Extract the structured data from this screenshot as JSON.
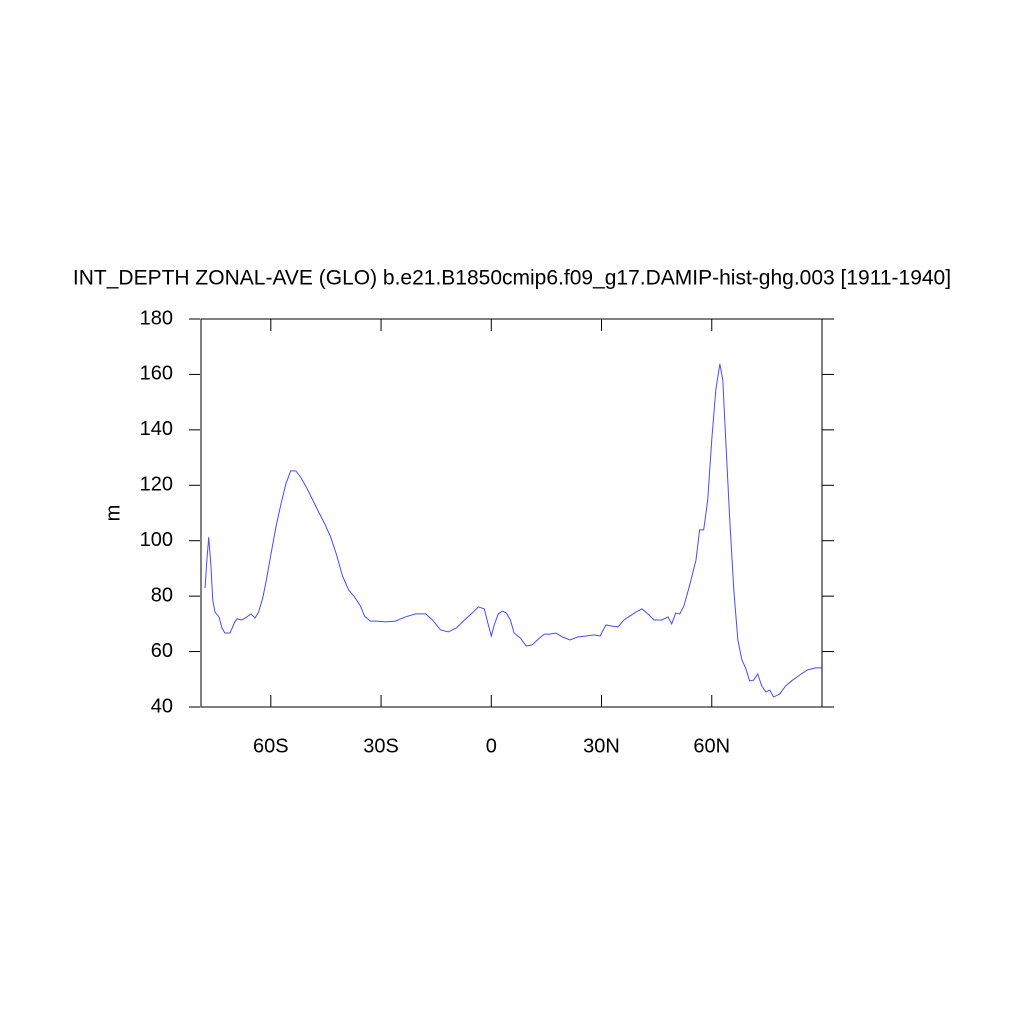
{
  "chart_data": {
    "type": "line",
    "title": "INT_DEPTH ZONAL-AVE (GLO) b.e21.B1850cmip6.f09_g17.DAMIP-hist-ghg.003 [1911-1940]",
    "y_label": "m",
    "xlim": [
      -79,
      90
    ],
    "ylim": [
      40,
      180
    ],
    "xticks": [
      {
        "value": -60,
        "label": "60S"
      },
      {
        "value": -30,
        "label": "30S"
      },
      0,
      {
        "value": 30,
        "label": "30N"
      },
      {
        "value": 60,
        "label": "60N"
      }
    ],
    "yticks": [
      40,
      60,
      80,
      100,
      120,
      140,
      160,
      180
    ],
    "grid": false,
    "series": [
      {
        "color": "#4a4aff",
        "x": [
          -77.9,
          -77.4,
          -76.9,
          -76.3,
          -75.8,
          -75.2,
          -74.1,
          -73.3,
          -72.5,
          -71.1,
          -69.8,
          -69.2,
          -67.9,
          -66.5,
          -65.4,
          -64.3,
          -63.3,
          -62.2,
          -61.1,
          -60.0,
          -58.6,
          -57.3,
          -55.9,
          -54.6,
          -53.2,
          -51.9,
          -50.2,
          -48.6,
          -47.0,
          -45.3,
          -43.7,
          -42.1,
          -40.5,
          -38.8,
          -37.2,
          -35.6,
          -34.5,
          -32.9,
          -31.2,
          -28.8,
          -26.1,
          -23.4,
          -20.6,
          -17.9,
          -16.0,
          -13.8,
          -11.7,
          -9.5,
          -7.3,
          -5.2,
          -3.5,
          -1.9,
          -0.8,
          0,
          0.8,
          1.9,
          3.0,
          4.1,
          5.2,
          6.2,
          7.9,
          9.5,
          11.1,
          12.8,
          14.4,
          16.0,
          17.6,
          19.3,
          21.4,
          23.6,
          25.8,
          28.0,
          29.6,
          31.2,
          32.9,
          34.5,
          36.1,
          37.7,
          39.4,
          41.0,
          42.6,
          44.3,
          46.4,
          48.1,
          49.1,
          50.2,
          51.3,
          52.4,
          54.0,
          55.7,
          56.7,
          57.8,
          58.9,
          60.0,
          61.1,
          62.2,
          63.0,
          63.8,
          64.9,
          66.0,
          67.1,
          68.2,
          69.2,
          70.3,
          71.4,
          72.5,
          73.6,
          74.7,
          75.8,
          76.8,
          78.5,
          80.1,
          81.7,
          83.9,
          86.1,
          88.2,
          89.9
        ],
        "values": [
          82.9,
          93,
          101.3,
          91,
          78.6,
          74.3,
          72.5,
          68.5,
          66.7,
          66.7,
          70.7,
          71.8,
          71.4,
          72.5,
          73.6,
          72.1,
          74.3,
          79.3,
          86.6,
          94.9,
          105,
          112.9,
          120.5,
          125.2,
          125.2,
          123,
          119,
          114.7,
          110.4,
          106,
          101.3,
          94.9,
          87.3,
          82.2,
          79.7,
          76.4,
          72.8,
          71,
          71,
          70.7,
          71,
          72.5,
          73.6,
          73.6,
          71.4,
          67.8,
          67.1,
          68.5,
          71.4,
          73.9,
          76.1,
          75.4,
          69.6,
          65.6,
          69.6,
          73.6,
          74.6,
          73.9,
          71.4,
          66.7,
          64.9,
          62,
          62.4,
          64.5,
          66.3,
          66.3,
          66.7,
          65.3,
          64.2,
          65.3,
          65.6,
          66,
          65.6,
          69.6,
          69.2,
          68.9,
          71.4,
          72.8,
          74.3,
          75.4,
          73.6,
          71.4,
          71.4,
          72.5,
          70,
          73.9,
          73.6,
          76.4,
          84,
          93,
          103.9,
          103.9,
          114.7,
          136.4,
          154.4,
          163.8,
          158,
          136.4,
          107.5,
          82.2,
          64.2,
          57,
          54.1,
          49.4,
          49.7,
          51.9,
          47.6,
          45.4,
          46.1,
          43.6,
          44.7,
          47.6,
          49.4,
          51.5,
          53.4,
          54.1,
          54.1
        ]
      }
    ]
  }
}
